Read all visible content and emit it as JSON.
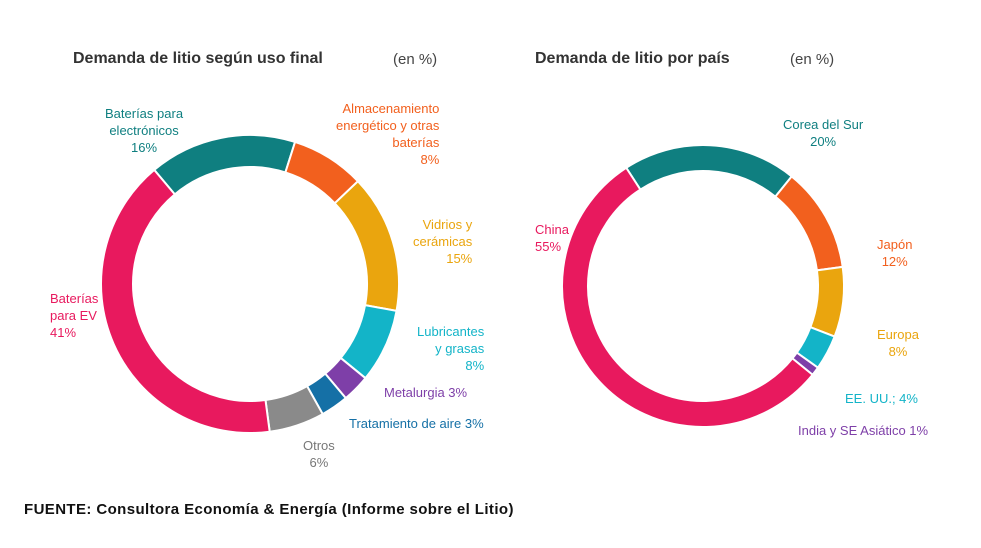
{
  "chart_data": [
    {
      "type": "pie",
      "title": "Demanda de litio según uso final",
      "subtitle": "(en %)",
      "slices": [
        {
          "label": "Baterías para electrónicos",
          "pct_text": "16%",
          "value": 16,
          "color": "#0f7f80"
        },
        {
          "label": "Almacenamiento energético y otras baterías",
          "pct_text": "8%",
          "value": 8,
          "color": "#f2601e"
        },
        {
          "label": "Vidrios y cerámicas",
          "pct_text": "15%",
          "value": 15,
          "color": "#eaa50e"
        },
        {
          "label": "Lubricantes y grasas",
          "pct_text": "8%",
          "value": 8,
          "color": "#13b4c8"
        },
        {
          "label": "Metalurgia",
          "pct_text": "3%",
          "value": 3,
          "color": "#7e3fa8"
        },
        {
          "label": "Tratamiento de aire",
          "pct_text": "3%",
          "value": 3,
          "color": "#1570a6"
        },
        {
          "label": "Otros",
          "pct_text": "6%",
          "value": 6,
          "color": "#8a8a8a"
        },
        {
          "label": "Baterías para EV",
          "pct_text": "41%",
          "value": 41,
          "color": "#e8195e"
        }
      ]
    },
    {
      "type": "pie",
      "title": "Demanda de litio por país",
      "subtitle": "(en %)",
      "slices": [
        {
          "label": "Corea del Sur",
          "pct_text": "20%",
          "value": 20,
          "color": "#0f7f80"
        },
        {
          "label": "Japón",
          "pct_text": "12%",
          "value": 12,
          "color": "#f2601e"
        },
        {
          "label": "Europa",
          "pct_text": "8%",
          "value": 8,
          "color": "#eaa50e"
        },
        {
          "label": "EE. UU.;",
          "pct_text": "4%",
          "value": 4,
          "color": "#13b4c8"
        },
        {
          "label": "India y SE Asiático",
          "pct_text": "1%",
          "value": 1,
          "color": "#7e3fa8"
        },
        {
          "label": "China",
          "pct_text": "55%",
          "value": 55,
          "color": "#e8195e"
        }
      ]
    }
  ],
  "labels": {
    "left": {
      "electronicos": [
        "Baterías para",
        "electrónicos",
        "16%"
      ],
      "almacenamiento": [
        "Almacenamiento",
        "energético y otras",
        "baterías",
        "8%"
      ],
      "vidrios": [
        "Vidrios y",
        "cerámicas",
        "15%"
      ],
      "lubricantes": [
        "Lubricantes",
        "y grasas",
        "8%"
      ],
      "metalurgia": "Metalurgia 3%",
      "tratamiento": "Tratamiento de aire 3%",
      "otros": [
        "Otros",
        "6%"
      ],
      "ev": [
        "Baterías",
        "para EV",
        "41%"
      ]
    },
    "right": {
      "corea": [
        "Corea del Sur",
        "20%"
      ],
      "japon": [
        "Japón",
        "12%"
      ],
      "europa": [
        "Europa",
        "8%"
      ],
      "eeuu": "EE. UU.; 4%",
      "india": "India y SE Asiático 1%",
      "china": [
        "China",
        "55%"
      ]
    }
  },
  "source": "FUENTE: Consultora Economía & Energía (Informe sobre el Litio)"
}
